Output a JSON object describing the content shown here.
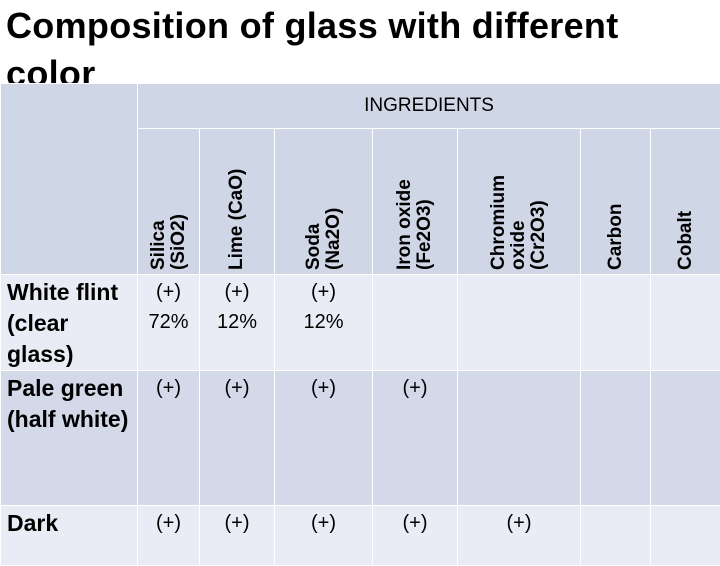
{
  "title": "Composition of glass with different color",
  "ingredients_header": "INGREDIENTS",
  "columns": [
    {
      "id": "silica",
      "lines": [
        "Silica",
        "(SiO2)"
      ]
    },
    {
      "id": "lime",
      "lines": [
        "Lime (CaO)"
      ]
    },
    {
      "id": "soda",
      "lines": [
        "Soda",
        "(Na2O)"
      ]
    },
    {
      "id": "iron",
      "lines": [
        "Iron oxide",
        "(Fe2O3)"
      ]
    },
    {
      "id": "chromium",
      "lines": [
        "Chromium",
        "oxide",
        "(Cr2O3)"
      ]
    },
    {
      "id": "carbon",
      "lines": [
        "Carbon"
      ]
    },
    {
      "id": "cobalt",
      "lines": [
        "Cobalt"
      ]
    }
  ],
  "rows": [
    {
      "name": "White flint (clear glass)",
      "cells": [
        "(+)\n72%",
        "(+)\n12%",
        "(+)\n12%",
        "",
        "",
        "",
        ""
      ]
    },
    {
      "name": "Pale green (half white)",
      "cells": [
        "(+)",
        "(+)",
        "(+)",
        "(+)",
        "",
        "",
        ""
      ]
    },
    {
      "name": "Dark",
      "cells": [
        "(+)",
        "(+)",
        "(+)",
        "(+)",
        "(+)",
        "",
        ""
      ]
    }
  ],
  "colors": {
    "header_bg": "#cfd6e6",
    "row_light": "#e9ecf4",
    "row_dark": "#d3d9e8"
  }
}
